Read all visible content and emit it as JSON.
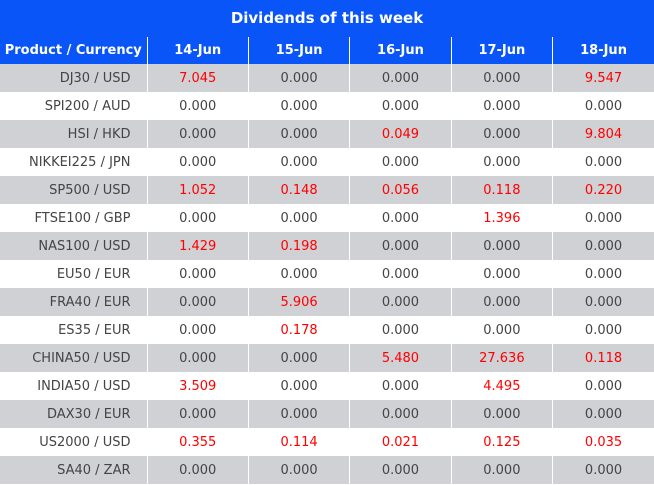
{
  "title": "Dividends of this week",
  "table": {
    "header": [
      "Product / Currency",
      "14-Jun",
      "15-Jun",
      "16-Jun",
      "17-Jun",
      "18-Jun"
    ],
    "rows": [
      [
        "DJ30 / USD",
        "7.045",
        "0.000",
        "0.000",
        "0.000",
        "9.547"
      ],
      [
        "SPI200 / AUD",
        "0.000",
        "0.000",
        "0.000",
        "0.000",
        "0.000"
      ],
      [
        "HSI / HKD",
        "0.000",
        "0.000",
        "0.049",
        "0.000",
        "9.804"
      ],
      [
        "NIKKEI225 / JPN",
        "0.000",
        "0.000",
        "0.000",
        "0.000",
        "0.000"
      ],
      [
        "SP500 / USD",
        "1.052",
        "0.148",
        "0.056",
        "0.118",
        "0.220"
      ],
      [
        "FTSE100 / GBP",
        "0.000",
        "0.000",
        "0.000",
        "1.396",
        "0.000"
      ],
      [
        "NAS100 / USD",
        "1.429",
        "0.198",
        "0.000",
        "0.000",
        "0.000"
      ],
      [
        "EU50 / EUR",
        "0.000",
        "0.000",
        "0.000",
        "0.000",
        "0.000"
      ],
      [
        "FRA40 / EUR",
        "0.000",
        "5.906",
        "0.000",
        "0.000",
        "0.000"
      ],
      [
        "ES35 / EUR",
        "0.000",
        "0.178",
        "0.000",
        "0.000",
        "0.000"
      ],
      [
        "CHINA50 / USD",
        "0.000",
        "0.000",
        "5.480",
        "27.636",
        "0.118"
      ],
      [
        "INDIA50 / USD",
        "3.509",
        "0.000",
        "0.000",
        "4.495",
        "0.000"
      ],
      [
        "DAX30 / EUR",
        "0.000",
        "0.000",
        "0.000",
        "0.000",
        "0.000"
      ],
      [
        "US2000 / USD",
        "0.355",
        "0.114",
        "0.021",
        "0.125",
        "0.035"
      ],
      [
        "SA40 / ZAR",
        "0.000",
        "0.000",
        "0.000",
        "0.000",
        "0.000"
      ]
    ]
  }
}
